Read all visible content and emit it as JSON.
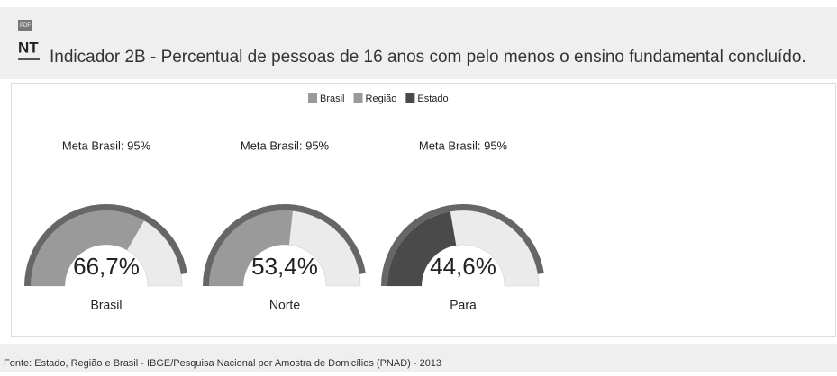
{
  "header": {
    "icon_top": "PDF",
    "icon": "NT",
    "title": "Indicador 2B - Percentual de pessoas de 16 anos com pelo menos o ensino fundamental concluído."
  },
  "chart_data": {
    "type": "gauge",
    "ylim": [
      0,
      100
    ],
    "legend": [
      {
        "name": "Brasil",
        "color": "#9a9a9a"
      },
      {
        "name": "Região",
        "color": "#9a9a9a"
      },
      {
        "name": "Estado",
        "color": "#4a4a4a"
      }
    ],
    "gauges": [
      {
        "label": "Brasil",
        "target_label": "Meta Brasil: 95%",
        "target": 95,
        "values": [
          66.7
        ],
        "value_labels": [
          "66,7%"
        ],
        "color": "#9a9a9a"
      },
      {
        "label": "Norte",
        "target_label": "Meta Brasil: 95%",
        "target": 95,
        "values": [
          53.4
        ],
        "value_labels": [
          "53,4%"
        ],
        "color": "#9a9a9a"
      },
      {
        "label": "Para",
        "target_label": "Meta Brasil: 95%",
        "target": 95,
        "values": [
          44.6
        ],
        "value_labels": [
          "44,6%"
        ],
        "color": "#4a4a4a"
      }
    ]
  },
  "footer": {
    "source": "Fonte: Estado, Região e Brasil - IBGE/Pesquisa Nacional por Amostra de Domicílios (PNAD) - 2013"
  }
}
